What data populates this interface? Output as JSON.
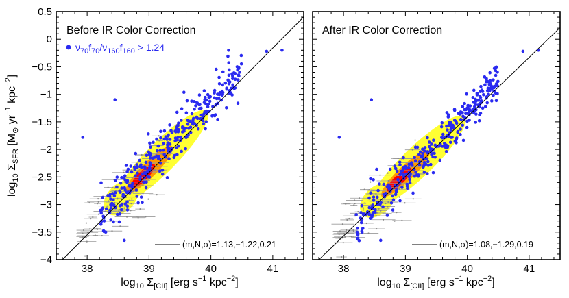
{
  "chart_data": [
    {
      "type": "scatter",
      "title": "Before IR Color Correction",
      "xlabel": "log10 Σ[CII] [erg s^-1 kpc^-2]",
      "ylabel": "log10 ΣSFR [M⊙ yr^-1 kpc^-2]",
      "xlim": [
        37.5,
        41.5
      ],
      "ylim": [
        -4,
        0.5
      ],
      "xticks": [
        "38",
        "39",
        "40",
        "41"
      ],
      "yticks": [
        "-4",
        "-3.5",
        "-3",
        "-2.5",
        "-2",
        "-1.5",
        "-1",
        "-0.5",
        "0",
        "0.5"
      ],
      "legend": "ν70f70/ν160f160 > 1.24",
      "fit": {
        "m": 1.13,
        "N": -1.22,
        "sigma": 0.21,
        "label": "(m,N,σ)=1.13,−1.22,0.21"
      },
      "series": [
        {
          "name": "density-contours",
          "colors": [
            "#ffff33",
            "#ff9900",
            "#ff0000"
          ]
        },
        {
          "name": "ν70f70/ν160f160 > 1.24",
          "color": "#2a2af0",
          "count": 330
        },
        {
          "name": "error-bar-points",
          "color": "#999999",
          "count": 90
        }
      ]
    },
    {
      "type": "scatter",
      "title": "After IR Color Correction",
      "xlabel": "log10 Σ[CII] [erg s^-1 kpc^-2]",
      "xlim": [
        37.5,
        41.5
      ],
      "ylim": [
        -4,
        0.5
      ],
      "xticks": [
        "38",
        "39",
        "40",
        "41"
      ],
      "fit": {
        "m": 1.08,
        "N": -1.29,
        "sigma": 0.19,
        "label": "(m,N,σ)=1.08,−1.29,0.19"
      },
      "series": [
        {
          "name": "density-contours",
          "colors": [
            "#ffff33",
            "#ff9900",
            "#ff0000"
          ]
        },
        {
          "name": "ν70f70/ν160f160 > 1.24",
          "color": "#2a2af0",
          "count": 330
        },
        {
          "name": "error-bar-points",
          "color": "#999999",
          "count": 90
        }
      ]
    }
  ],
  "labels": {
    "xlabel_main": "log",
    "xlabel_sub1": "10",
    "xlabel_mid": " Σ",
    "xlabel_sub2": "[CII]",
    "xlabel_rest": " [erg s",
    "xlabel_sup1": "−1",
    "xlabel_rest2": " kpc",
    "xlabel_sup2": "−2",
    "xlabel_end": "]",
    "ylabel_main": "log",
    "ylabel_sub1": "10",
    "ylabel_mid": " Σ",
    "ylabel_sub2": "SFR",
    "ylabel_rest": " [M",
    "ylabel_sun": "⊙",
    "ylabel_rest2": " yr",
    "ylabel_sup1": "−1",
    "ylabel_rest3": " kpc",
    "ylabel_sup2": "−2",
    "ylabel_end": "]",
    "legend_nu1": "ν",
    "legend_s1": "70",
    "legend_f1": "f",
    "legend_s2": "70",
    "legend_slash": "/ν",
    "legend_s3": "160",
    "legend_f2": "f",
    "legend_s4": "160",
    "legend_rest": " > 1.24"
  },
  "colors": {
    "blue": "#2a2af0",
    "gray": "#999999",
    "yellow": "#ffff33",
    "orange": "#ff9900",
    "red": "#ff0000"
  }
}
